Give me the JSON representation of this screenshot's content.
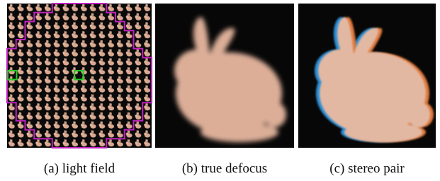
{
  "captions": [
    "(a) light field",
    "(b) true defocus",
    "(c) stereo pair"
  ]
}
